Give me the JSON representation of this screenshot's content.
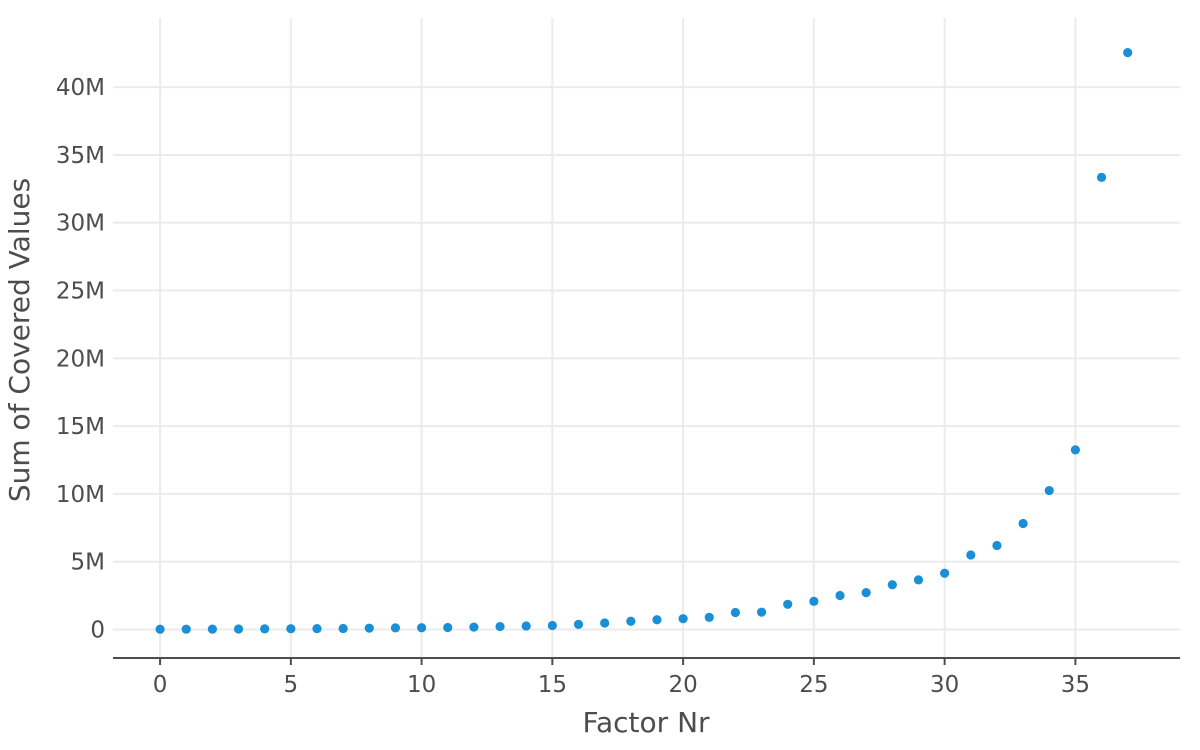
{
  "chart_data": {
    "type": "scatter",
    "title": "",
    "xlabel": "Factor Nr",
    "ylabel": "Sum of Covered Values",
    "xlim": [
      -1.8,
      39
    ],
    "ylim": [
      -2100000,
      45100000
    ],
    "x_ticks": [
      0,
      5,
      10,
      15,
      20,
      25,
      30,
      35
    ],
    "x_tick_labels": [
      "0",
      "5",
      "10",
      "15",
      "20",
      "25",
      "30",
      "35"
    ],
    "y_ticks": [
      0,
      5000000,
      10000000,
      15000000,
      20000000,
      25000000,
      30000000,
      35000000,
      40000000
    ],
    "y_tick_labels": [
      "0",
      "5M",
      "10M",
      "15M",
      "20M",
      "25M",
      "30M",
      "35M",
      "40M"
    ],
    "grid": true,
    "point_color": "#1a8fd6",
    "series": [
      {
        "x": [
          0,
          1,
          2,
          3,
          4,
          5,
          6,
          7,
          8,
          9,
          10,
          11,
          12,
          13,
          14,
          15,
          16,
          17,
          18,
          19,
          20,
          21,
          22,
          23,
          24,
          25,
          26,
          27,
          28,
          29,
          30,
          31,
          32,
          33,
          34,
          35,
          36,
          37
        ],
        "y": [
          20000,
          25000,
          30000,
          40000,
          50000,
          60000,
          70000,
          80000,
          100000,
          120000,
          130000,
          150000,
          180000,
          220000,
          260000,
          300000,
          380000,
          480000,
          610000,
          720000,
          800000,
          900000,
          1260000,
          1280000,
          1860000,
          2080000,
          2510000,
          2720000,
          3300000,
          3660000,
          4150000,
          5500000,
          6200000,
          7820000,
          10250000,
          13250000,
          33350000,
          42550000
        ]
      }
    ]
  }
}
